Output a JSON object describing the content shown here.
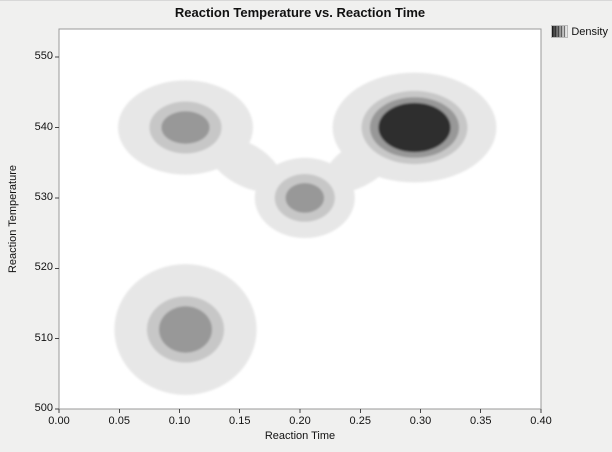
{
  "title": "Reaction Temperature vs. Reaction Time",
  "legend": {
    "label": "Density"
  },
  "chart_data": {
    "type": "contour-density",
    "title": "Reaction Temperature vs. Reaction Time",
    "xlabel": "Reaction Time",
    "ylabel": "Reaction Temperature",
    "xlim": [
      0,
      0.4
    ],
    "ylim": [
      500,
      554
    ],
    "grid": false,
    "legend_position": "top-right",
    "x_ticks": [
      {
        "v": 0.0,
        "label": "0.00"
      },
      {
        "v": 0.05,
        "label": "0.05"
      },
      {
        "v": 0.1,
        "label": "0.10"
      },
      {
        "v": 0.15,
        "label": "0.15"
      },
      {
        "v": 0.2,
        "label": "0.20"
      },
      {
        "v": 0.25,
        "label": "0.25"
      },
      {
        "v": 0.3,
        "label": "0.30"
      },
      {
        "v": 0.35,
        "label": "0.35"
      },
      {
        "v": 0.4,
        "label": "0.40"
      }
    ],
    "y_ticks": [
      {
        "v": 500,
        "label": "500"
      },
      {
        "v": 510,
        "label": "510"
      },
      {
        "v": 520,
        "label": "520"
      },
      {
        "v": 530,
        "label": "530"
      },
      {
        "v": 540,
        "label": "540"
      },
      {
        "v": 550,
        "label": "550"
      }
    ],
    "levels_colors": [
      "#e7e7e7",
      "#c7c7c7",
      "#989898",
      "#2e2e2e"
    ],
    "blobs": [
      {
        "name": "cluster-low-time-540",
        "x": 0.105,
        "y": 540,
        "rings": [
          {
            "rx": 0.056,
            "ry": 6.7,
            "color": 0
          },
          {
            "rx": 0.03,
            "ry": 3.7,
            "color": 1
          },
          {
            "rx": 0.02,
            "ry": 2.3,
            "color": 2
          }
        ]
      },
      {
        "name": "cluster-high-time-540-max-density",
        "x": 0.295,
        "y": 540,
        "rings": [
          {
            "rx": 0.068,
            "ry": 7.8,
            "color": 0
          },
          {
            "rx": 0.044,
            "ry": 5.2,
            "color": 1
          },
          {
            "rx": 0.037,
            "ry": 4.3,
            "color": 2
          },
          {
            "rx": 0.03,
            "ry": 3.5,
            "color": 3
          }
        ]
      },
      {
        "name": "cluster-mid-time-530",
        "x": 0.204,
        "y": 530,
        "rings": [
          {
            "rx": 0.0415,
            "ry": 5.7,
            "color": 0
          },
          {
            "rx": 0.025,
            "ry": 3.4,
            "color": 1
          },
          {
            "rx": 0.016,
            "ry": 2.1,
            "color": 2
          }
        ]
      },
      {
        "name": "cluster-low-time-511",
        "x": 0.105,
        "y": 511.3,
        "rings": [
          {
            "rx": 0.059,
            "ry": 9.3,
            "color": 0
          },
          {
            "rx": 0.032,
            "ry": 4.7,
            "color": 1
          },
          {
            "rx": 0.022,
            "ry": 3.3,
            "color": 2
          }
        ]
      }
    ],
    "bridges": [
      {
        "x": 0.154,
        "y": 534.8,
        "rx": 0.034,
        "ry": 3.0,
        "rotate": 30,
        "color": 0
      },
      {
        "x": 0.25,
        "y": 534.8,
        "rx": 0.034,
        "ry": 3.0,
        "rotate": -32,
        "color": 0
      }
    ]
  }
}
